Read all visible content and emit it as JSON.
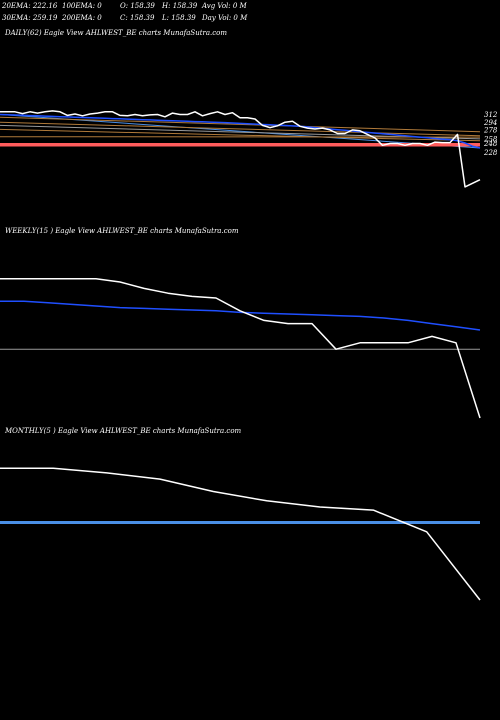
{
  "header": {
    "row1": [
      "20EMA: 222.16",
      "100EMA: 0",
      "O: 158.39",
      "H: 158.39",
      "Avg Vol: 0  M"
    ],
    "row2": [
      "30EMA: 259.19",
      "200EMA: 0",
      "C: 158.39",
      "L: 158.39",
      "Day Vol: 0  M"
    ]
  },
  "colors": {
    "background": "#000000",
    "price": "#ffffff",
    "ema_blue": "#1f4fff",
    "ema_blue_light": "#4a8fe6",
    "ma_red": "#ff5c5c",
    "ma_brown": "#b07a3a",
    "ma_gray": "#9a9a9a"
  },
  "chart_data": [
    {
      "type": "line",
      "title": "DAILY(62) Eagle  View  AHLWEST_BE charts MunafaSutra.com",
      "yticks": [
        312,
        294,
        278,
        258,
        248,
        228
      ],
      "ylim": [
        132,
        344
      ],
      "series": [
        {
          "role": "price",
          "color": "#ffffff",
          "width": 1.5,
          "values": [
            318,
            318,
            318,
            314,
            318,
            315,
            318,
            320,
            318,
            310,
            313,
            309,
            313,
            315,
            318,
            318,
            310,
            309,
            312,
            309,
            311,
            312,
            307,
            315,
            312,
            312,
            318,
            309,
            314,
            318,
            312,
            316,
            305,
            305,
            302,
            288,
            283,
            287,
            295,
            297,
            286,
            282,
            280,
            282,
            278,
            270,
            270,
            278,
            276,
            268,
            260,
            244,
            248,
            248,
            244,
            248,
            248,
            244,
            251,
            250,
            250,
            268,
            152,
            160,
            168
          ]
        },
        {
          "role": "ema",
          "color": "#1f4fff",
          "width": 1.5,
          "values": [
            312,
            311.4,
            310.8,
            310.2,
            309.6,
            309,
            308.4,
            307.8,
            307.2,
            306.6,
            306,
            305.4,
            304.8,
            304.2,
            303.6,
            303,
            302.4,
            301.8,
            301.2,
            300.6,
            300,
            299.4,
            298.8,
            298.2,
            297.6,
            297,
            296.4,
            295.8,
            295.2,
            294.6,
            294,
            293.2,
            292.4,
            291.6,
            290.8,
            290,
            289.2,
            288.4,
            287.6,
            286.8,
            286,
            284.5,
            283,
            281.5,
            280,
            278.5,
            277,
            275.5,
            274,
            272.5,
            271,
            269.5,
            268,
            266.5,
            265,
            263.5,
            262,
            260.5,
            259,
            257.5,
            256,
            254,
            249,
            242,
            238
          ]
        },
        {
          "role": "ma",
          "color": "#4a8fe6",
          "width": 1,
          "values": [
            312,
            238
          ]
        },
        {
          "role": "ma",
          "color": "#b07a3a",
          "width": 1,
          "values": [
            306,
            274
          ]
        },
        {
          "role": "ma",
          "color": "#b07a3a",
          "width": 1,
          "values": [
            295,
            265
          ]
        },
        {
          "role": "ma",
          "color": "#9a9a9a",
          "width": 1,
          "values": [
            288,
            258
          ]
        },
        {
          "role": "ma",
          "color": "#b07a3a",
          "width": 1,
          "values": [
            279,
            254
          ]
        },
        {
          "role": "ma",
          "color": "#b07a3a",
          "width": 1,
          "values": [
            263,
            262
          ]
        },
        {
          "role": "ma",
          "color": "#ff5c5c",
          "width": 2.5,
          "values": [
            244,
            244
          ]
        },
        {
          "role": "ma",
          "color": "#ff5c5c",
          "width": 1,
          "values": [
            248,
            248
          ]
        }
      ]
    },
    {
      "type": "line",
      "title": "WEEKLY(15                             ) Eagle  View  AHLWEST_BE charts MunafaSutra.com",
      "yticks": [],
      "ylim": [
        0,
        100
      ],
      "series": [
        {
          "role": "price",
          "color": "#ffffff",
          "width": 1.5,
          "values": [
            82,
            82,
            82,
            82,
            82,
            80,
            76,
            73,
            71,
            70,
            62,
            56,
            54,
            54,
            38,
            42,
            42,
            42,
            46,
            42,
            -5
          ]
        },
        {
          "role": "ema",
          "color": "#1f4fff",
          "width": 1.5,
          "values": [
            68,
            68,
            67,
            66,
            65,
            64,
            63.5,
            63,
            62.5,
            62,
            61,
            60.5,
            60,
            59.5,
            59,
            58.5,
            57.5,
            56,
            54,
            52,
            50
          ]
        },
        {
          "role": "ma",
          "color": "#9a9a9a",
          "width": 1,
          "values": [
            38,
            38
          ]
        }
      ]
    },
    {
      "type": "line",
      "title": "MONTHLY(5                               ) Eagle  View  AHLWEST_BE charts MunafaSutra.com",
      "yticks": [],
      "ylim": [
        0,
        100
      ],
      "series": [
        {
          "role": "price",
          "color": "#ffffff",
          "width": 1.5,
          "values": [
            85,
            85,
            82,
            78,
            70,
            64,
            60,
            58,
            44,
            0
          ]
        },
        {
          "role": "ma",
          "color": "#4a8fe6",
          "width": 3,
          "values": [
            50,
            50
          ]
        }
      ]
    }
  ]
}
